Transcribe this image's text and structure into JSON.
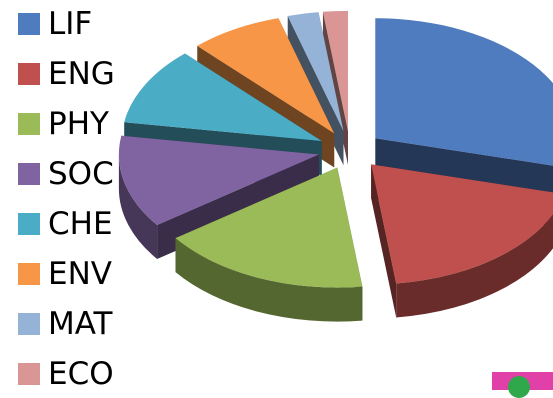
{
  "chart_data": {
    "type": "pie",
    "style": "3d-exploded",
    "legend_position": "left",
    "series": [
      {
        "name": "LIF",
        "value": 29.0,
        "color": "#4f7bbf"
      },
      {
        "name": "ENG",
        "value": 19.0,
        "color": "#c0504d"
      },
      {
        "name": "PHY",
        "value": 17.0,
        "color": "#9bbb59"
      },
      {
        "name": "SOC",
        "value": 12.5,
        "color": "#8064a2"
      },
      {
        "name": "CHE",
        "value": 10.5,
        "color": "#4bacc6"
      },
      {
        "name": "ENV",
        "value": 7.5,
        "color": "#f79646"
      },
      {
        "name": "MAT",
        "value": 2.5,
        "color": "#95b3d7"
      },
      {
        "name": "ECO",
        "value": 2.0,
        "color": "#d99694"
      }
    ]
  },
  "colors": {
    "badge_magenta": "#e040a8",
    "badge_green": "#2ea84a"
  }
}
